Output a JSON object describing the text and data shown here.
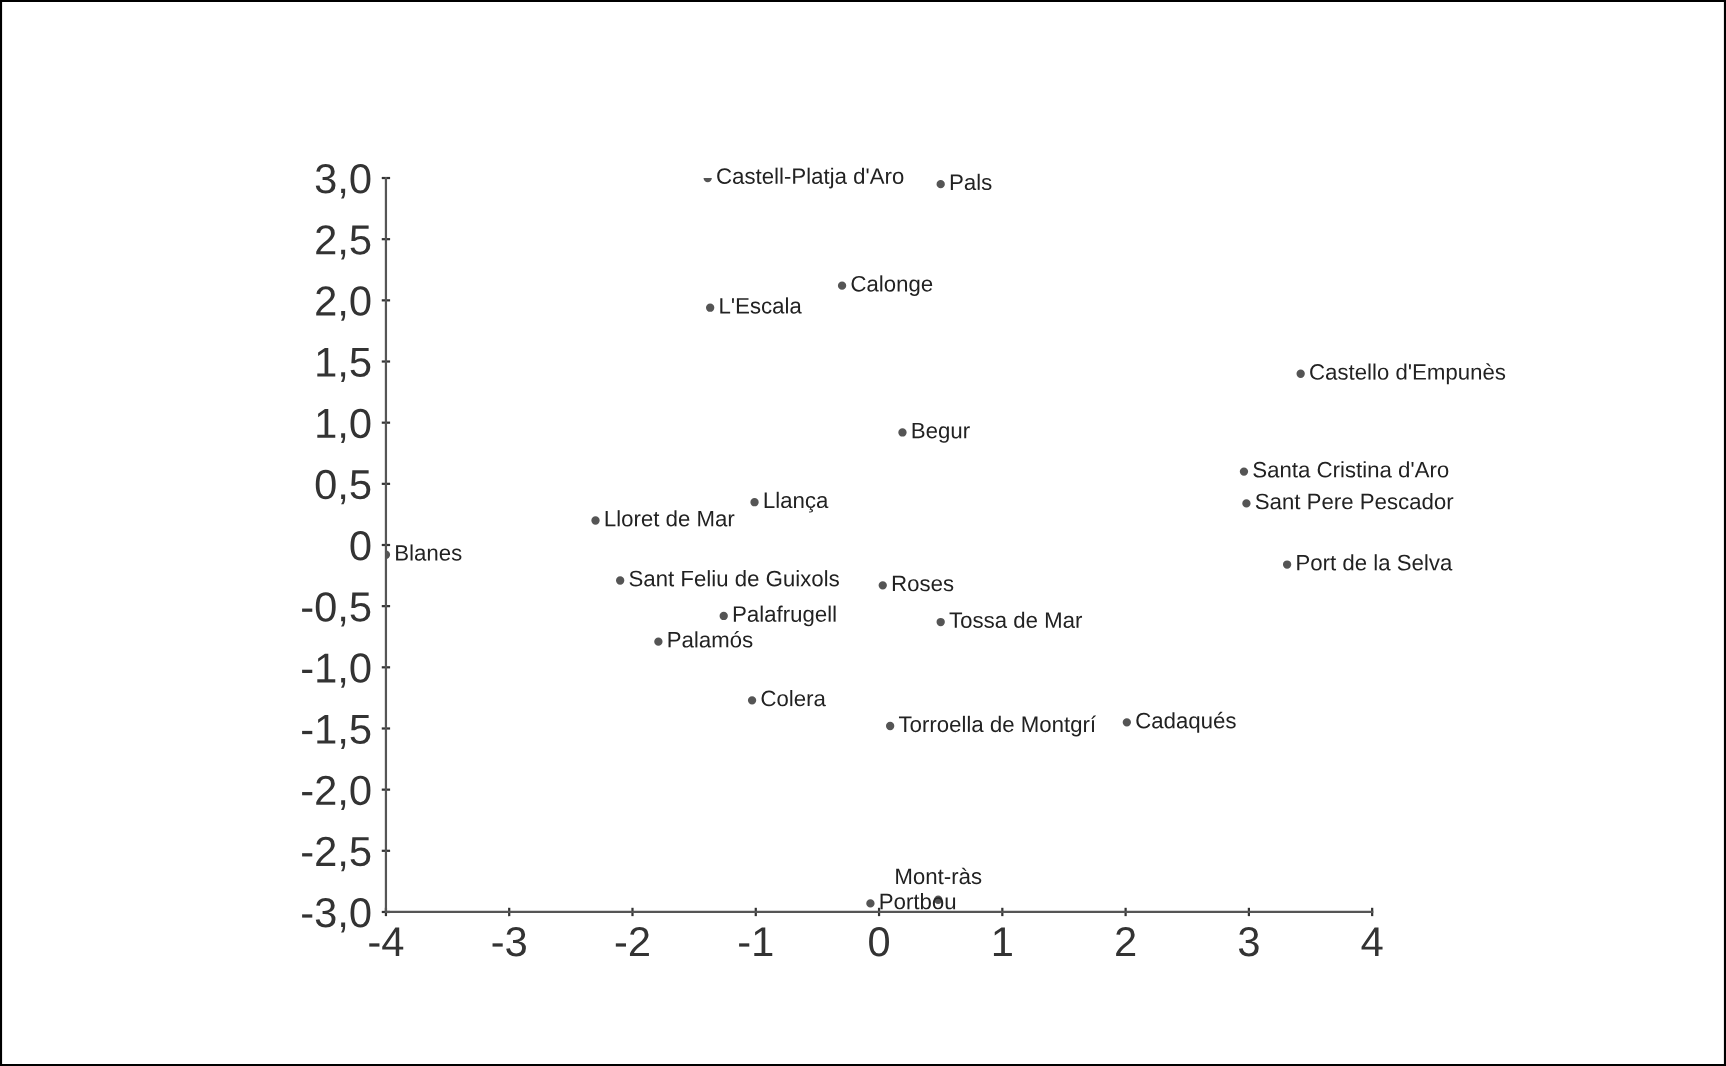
{
  "chart_data": {
    "type": "scatter",
    "marker": "circle",
    "color": "#555555",
    "grid": false,
    "x": [
      -1.39,
      0.5,
      -0.3,
      -1.37,
      3.42,
      0.19,
      2.96,
      2.98,
      -1.01,
      -2.3,
      -4.0,
      3.31,
      -2.1,
      0.03,
      -1.26,
      -1.79,
      0.5,
      -1.03,
      0.09,
      2.01,
      -0.07,
      0.48
    ],
    "values": [
      3.0,
      2.95,
      2.12,
      1.94,
      1.4,
      0.92,
      0.6,
      0.34,
      0.35,
      0.2,
      -0.08,
      -0.16,
      -0.29,
      -0.33,
      -0.58,
      -0.79,
      -0.63,
      -1.27,
      -1.48,
      -1.45,
      -2.93,
      -2.9
    ],
    "value_labels": [
      "Castell-Platja d'Aro",
      "Pals",
      "Calonge",
      "L'Escala",
      "Castello d'Empunès",
      "Begur",
      "Santa Cristina d'Aro",
      "Sant Pere Pescador",
      "Llança",
      "Lloret de Mar",
      "Blanes",
      "Port de la Selva",
      "Sant Feliu de Guixols",
      "Roses",
      "Palafrugell",
      "Palamós",
      "Tossa de Mar",
      "Colera",
      "Torroella de Montgrí",
      "Cadaqués",
      "Portbou",
      "Mont-ràs"
    ],
    "xlim": [
      -4,
      4
    ],
    "xticks": [
      -4,
      -3,
      -2,
      -1,
      0,
      1,
      2,
      3,
      4
    ],
    "ylim": [
      -3,
      3
    ],
    "yticks": [
      {
        "value": -3,
        "label": "-3,0"
      },
      {
        "value": -2.5,
        "label": "-2,5"
      },
      {
        "value": -2,
        "label": "-2,0"
      },
      {
        "value": -1.5,
        "label": "-1,5"
      },
      {
        "value": -1,
        "label": "-1,0"
      },
      {
        "value": -0.5,
        "label": "-0,5"
      },
      0,
      {
        "value": 0.5,
        "label": "0,5"
      },
      {
        "value": 1,
        "label": "1,0"
      },
      {
        "value": 1.5,
        "label": "1,5"
      },
      {
        "value": 2,
        "label": "2,0"
      },
      {
        "value": 2.5,
        "label": "2,5"
      },
      {
        "value": 3,
        "label": "3,0"
      }
    ]
  }
}
